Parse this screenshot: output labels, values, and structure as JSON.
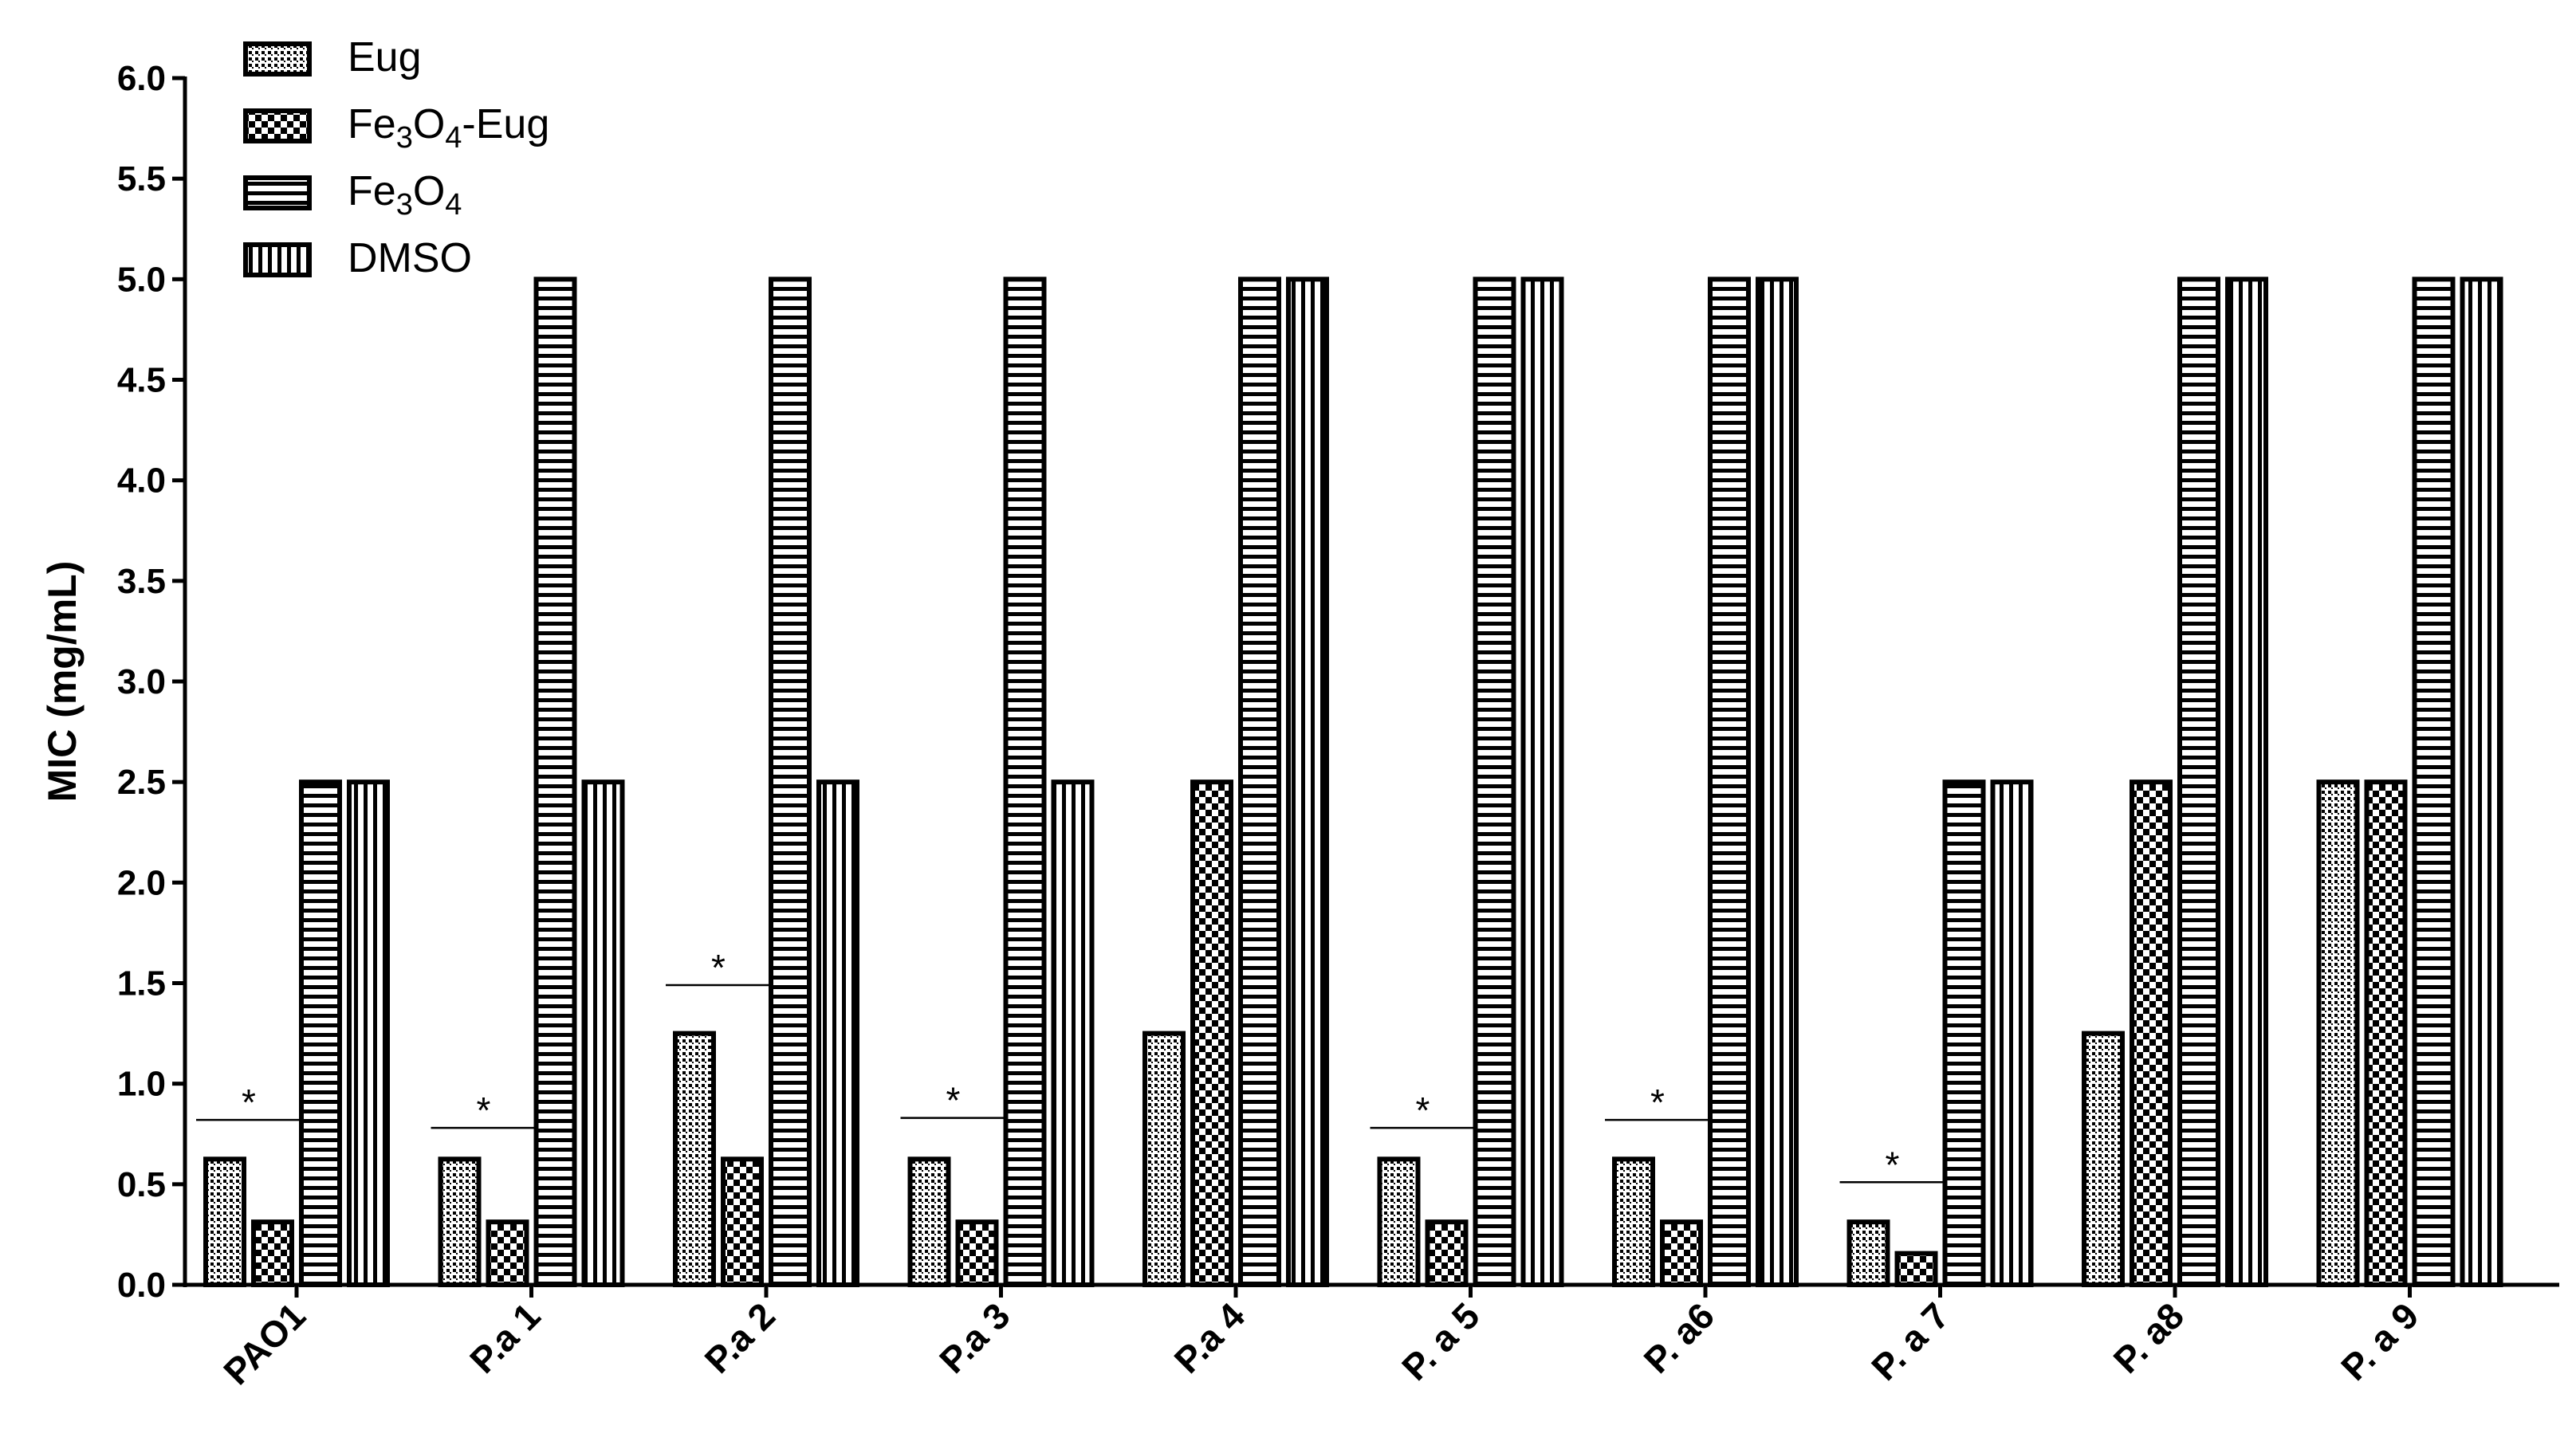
{
  "chart_data": {
    "type": "bar",
    "title": "",
    "xlabel": "",
    "ylabel": "MIC (mg/mL)",
    "ylim": [
      0,
      6.0
    ],
    "yticks": [
      "0.0",
      "0.5",
      "1.0",
      "1.5",
      "2.0",
      "2.5",
      "3.0",
      "3.5",
      "4.0",
      "4.5",
      "5.0",
      "5.5",
      "6.0"
    ],
    "categories": [
      "PAO1",
      "P.a 1",
      "P.a 2",
      "P.a 3",
      "P.a 4",
      "P. a 5",
      "P. a6",
      "P. a 7",
      "P. a8",
      "P. a 9"
    ],
    "series": [
      {
        "name": "Eug",
        "pattern": "dots",
        "values": [
          0.625,
          0.625,
          1.25,
          0.625,
          1.25,
          0.625,
          0.625,
          0.3125,
          1.25,
          2.5
        ]
      },
      {
        "name": "Fe3O4-Eug",
        "pattern": "checker",
        "values": [
          0.3125,
          0.3125,
          0.625,
          0.3125,
          2.5,
          0.3125,
          0.3125,
          0.156,
          2.5,
          2.5
        ]
      },
      {
        "name": "Fe3O4",
        "pattern": "hlines",
        "values": [
          2.5,
          5.0,
          5.0,
          5.0,
          5.0,
          5.0,
          5.0,
          2.5,
          5.0,
          5.0
        ]
      },
      {
        "name": "DMSO",
        "pattern": "vlines",
        "values": [
          2.5,
          2.5,
          2.5,
          2.5,
          5.0,
          5.0,
          5.0,
          2.5,
          5.0,
          5.0
        ]
      }
    ],
    "significance": [
      {
        "category": "PAO1",
        "label": "*",
        "level": 0.82
      },
      {
        "category": "P.a 1",
        "label": "*",
        "level": 0.78
      },
      {
        "category": "P.a 2",
        "label": "*",
        "level": 1.49
      },
      {
        "category": "P.a 3",
        "label": "*",
        "level": 0.83
      },
      {
        "category": "P. a 5",
        "label": "*",
        "level": 0.78
      },
      {
        "category": "P. a6",
        "label": "*",
        "level": 0.82
      },
      {
        "category": "P. a 7",
        "label": "*",
        "level": 0.51
      }
    ],
    "legend": {
      "placement": "top-left",
      "entries": [
        {
          "text": "Eug",
          "pattern": "dots"
        },
        {
          "text": "Fe3O4-Eug",
          "pattern": "checker",
          "base": "Fe",
          "sub1": "3",
          "mid": "O",
          "sub2": "4",
          "suffix": "-Eug"
        },
        {
          "text": "Fe3O4",
          "pattern": "hlines",
          "base": "Fe",
          "sub1": "3",
          "mid": "O",
          "sub2": "4",
          "suffix": ""
        },
        {
          "text": "DMSO",
          "pattern": "vlines"
        }
      ]
    },
    "grid": false
  }
}
